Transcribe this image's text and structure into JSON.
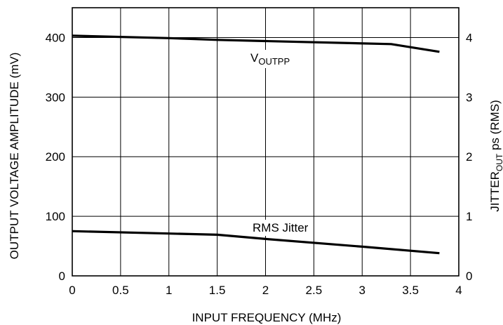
{
  "chart_data": {
    "type": "line",
    "xlabel": "INPUT FREQUENCY (MHz)",
    "ylabel": "OUTPUT VOLTAGE AMPLITUDE (mV)",
    "y2label": {
      "prefix": "JITTER",
      "subscript": "OUT",
      "suffix": " ps (RMS)"
    },
    "xlim": [
      0,
      4
    ],
    "ylim": [
      0,
      450
    ],
    "y2lim": [
      0,
      4.5
    ],
    "grid": true,
    "x_ticks": [
      "0",
      "0.5",
      "1",
      "1.5",
      "2",
      "2.5",
      "3",
      "3.5",
      "4"
    ],
    "y_ticks": [
      "0",
      "100",
      "200",
      "300",
      "400"
    ],
    "y2_ticks": [
      "0",
      "1",
      "2",
      "3",
      "4"
    ],
    "series": [
      {
        "label_main": "V",
        "label_sub": "OUTPP",
        "axis": "left",
        "x": [
          0,
          1,
          1.5,
          2,
          3.3,
          3.8
        ],
        "y": [
          403,
          399,
          396,
          394,
          389,
          376
        ]
      },
      {
        "label_main": "RMS Jitter",
        "label_sub": "",
        "axis": "right",
        "x": [
          0,
          1,
          1.5,
          2,
          3,
          3.8
        ],
        "y": [
          0.75,
          0.71,
          0.69,
          0.62,
          0.49,
          0.38
        ]
      }
    ]
  }
}
